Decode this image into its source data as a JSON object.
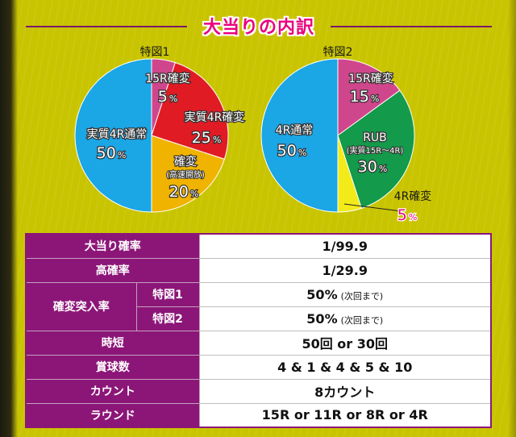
{
  "title": "大当りの内訳",
  "chart_data": [
    {
      "type": "pie",
      "title": "特図1",
      "slices": [
        {
          "label": "15R確変",
          "note": "",
          "value": 5,
          "color": "#d0468c"
        },
        {
          "label": "実質4R確変",
          "note": "",
          "value": 25,
          "color": "#e01b24"
        },
        {
          "label": "確変",
          "note": "(高速開放)",
          "value": 20,
          "color": "#f0b300"
        },
        {
          "label": "実質4R通常",
          "note": "",
          "value": 50,
          "color": "#1ba6e6"
        }
      ],
      "unit": "%"
    },
    {
      "type": "pie",
      "title": "特図2",
      "slices": [
        {
          "label": "15R確変",
          "note": "",
          "value": 15,
          "color": "#d0468c"
        },
        {
          "label": "RUB",
          "note": "(実質15R～4R)",
          "value": 30,
          "color": "#139a4a"
        },
        {
          "label": "4R確変",
          "note": "",
          "value": 5,
          "color": "#f3ea1a"
        },
        {
          "label": "4R通常",
          "note": "",
          "value": 50,
          "color": "#1ba6e6"
        }
      ],
      "unit": "%"
    }
  ],
  "table": {
    "rows": [
      {
        "label": "大当り確率",
        "value": "1/99.9"
      },
      {
        "label": "高確率",
        "value": "1/29.9"
      },
      {
        "label": "確変突入率",
        "sub": [
          {
            "label": "特図1",
            "value": "50%",
            "note": "(次回まで)"
          },
          {
            "label": "特図2",
            "value": "50%",
            "note": "(次回まで)"
          }
        ]
      },
      {
        "label": "時短",
        "value": "50回 or 30回"
      },
      {
        "label": "賞球数",
        "value": "4 & 1 & 4 & 5 & 10"
      },
      {
        "label": "カウント",
        "value": "8カウント"
      },
      {
        "label": "ラウンド",
        "value": "15R or 11R or 8R or 4R"
      }
    ]
  }
}
